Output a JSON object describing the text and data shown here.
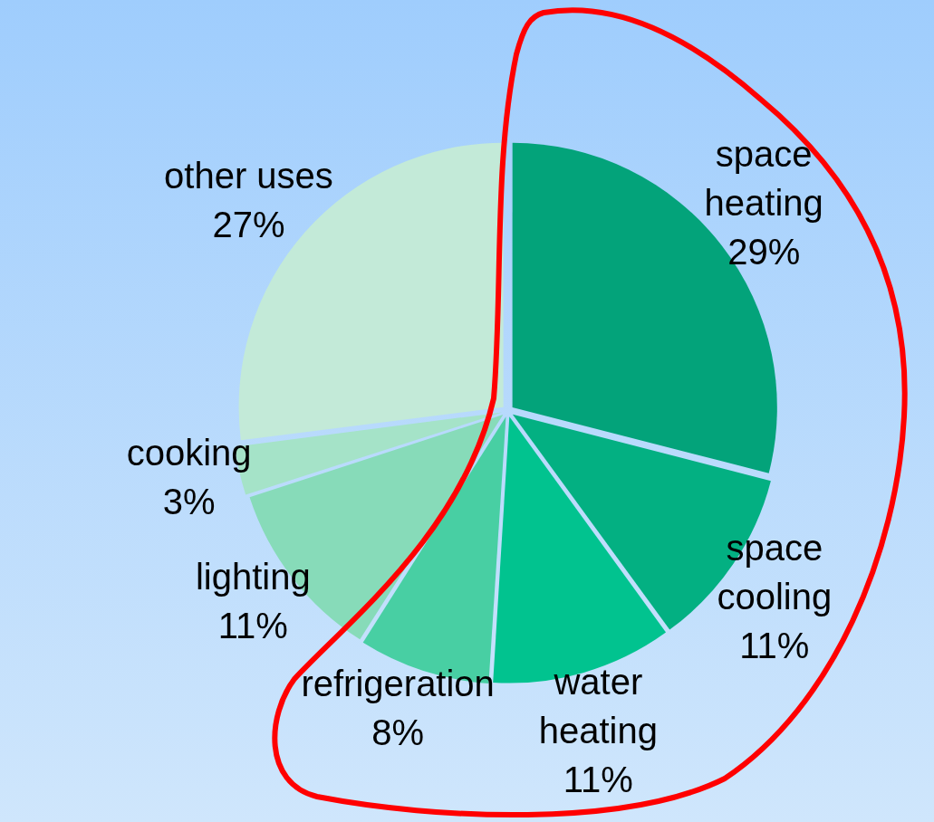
{
  "chart_data": {
    "type": "pie",
    "categories": [
      "space heating",
      "space cooling",
      "water heating",
      "refrigeration",
      "lighting",
      "cooking",
      "other uses"
    ],
    "values": [
      29,
      11,
      11,
      8,
      11,
      3,
      27
    ],
    "colors": [
      "#03a37a",
      "#03b082",
      "#01c38f",
      "#48cfa3",
      "#87dbb9",
      "#a5e3c8",
      "#c3ead8"
    ],
    "value_labels": [
      "29%",
      "11%",
      "11%",
      "8%",
      "11%",
      "3%",
      "27%"
    ]
  }
}
